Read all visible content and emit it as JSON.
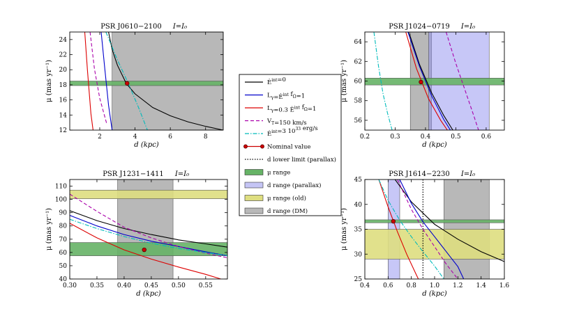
{
  "legend": {
    "entries": [
      {
        "kind": "line",
        "color": "#000000",
        "dash": "",
        "label": "Ė_int=0",
        "label_main": "Ė",
        "label_sup": "int",
        "label_rest": "=0"
      },
      {
        "kind": "line",
        "color": "#0000cc",
        "dash": "",
        "label": "L_γ=Ė_int f_Ω=1",
        "label_main": "L",
        "label_sub": "γ",
        "label_mid": "=Ė",
        "label_sup": "int",
        "label_rest": "  f",
        "label_sub2": "Ω",
        "label_end": "=1"
      },
      {
        "kind": "line",
        "color": "#dd0000",
        "dash": "",
        "label": "L_γ=0.3 Ė_int f_Ω=1",
        "label_main": "L",
        "label_sub": "γ",
        "label_mid": "=0.3 Ė",
        "label_sup": "int",
        "label_rest": "  f",
        "label_sub2": "Ω",
        "label_end": "=1"
      },
      {
        "kind": "line",
        "color": "#aa00aa",
        "dash": "5,3",
        "label": "V_T=150 km/s",
        "label_main": "V",
        "label_sub": "T",
        "label_rest": "=150 km/s"
      },
      {
        "kind": "line",
        "color": "#00bbbb",
        "dash": "6,2,1.5,2",
        "label": "Ė_int=3 10^33 erg/s",
        "label_main": "Ė",
        "label_sup": "int",
        "label_rest": "=3 10",
        "label_sup2": "33",
        "label_end": " erg/s"
      },
      {
        "kind": "marker",
        "color": "#cc0000",
        "label": "Nominal value",
        "label_main": "Nominal value"
      },
      {
        "kind": "line",
        "color": "#000000",
        "dash": "1.5,2",
        "label": "d lower limit (parallax)",
        "label_main": "d lower limit (parallax)"
      },
      {
        "kind": "patch",
        "color": "#66b366",
        "label": "μ range",
        "label_main": "μ range"
      },
      {
        "kind": "patch",
        "color": "#c5c5f5",
        "label": "d range (parallax)",
        "label_main": "d range (parallax)"
      },
      {
        "kind": "patch",
        "color": "#dede80",
        "label": "μ range (old)",
        "label_main": "μ range (old)"
      },
      {
        "kind": "patch",
        "color": "#b8b8b8",
        "label": "d range (DM)",
        "label_main": "d range (DM)"
      }
    ]
  },
  "chart_data": [
    {
      "type": "line",
      "title": "PSR J0610−2100",
      "title_right": "I=I₀",
      "xlabel": "d (kpc)",
      "ylabel": "μ (mas yr⁻¹)",
      "xlim": [
        0.3,
        9.0
      ],
      "ylim": [
        12,
        25
      ],
      "xticks": [
        2,
        4,
        6,
        8
      ],
      "yticks": [
        12,
        14,
        16,
        18,
        20,
        22,
        24
      ],
      "tick_decimals": 0,
      "vbands": [
        {
          "from": 2.7,
          "to": 9.0,
          "color": "#b8b8b8",
          "alpha": 1.0
        }
      ],
      "hbands": [
        {
          "from": 17.9,
          "to": 18.5,
          "color": "#66b366",
          "alpha": 0.9
        }
      ],
      "vlines": [],
      "series": [
        {
          "color": "#000000",
          "dash": "",
          "x": [
            2.5,
            2.7,
            3.0,
            3.5,
            4.0,
            5.0,
            6.0,
            7.0,
            8.0,
            9.0
          ],
          "y": [
            25.0,
            22.7,
            20.6,
            18.2,
            16.8,
            15.0,
            13.9,
            13.1,
            12.5,
            12.0
          ]
        },
        {
          "color": "#0000cc",
          "dash": "",
          "x": [
            2.08,
            2.3,
            2.5,
            2.7
          ],
          "y": [
            25.0,
            19.8,
            15.3,
            12.0
          ]
        },
        {
          "color": "#dd0000",
          "dash": "",
          "x": [
            1.15,
            1.3,
            1.5,
            1.62
          ],
          "y": [
            25.0,
            20.0,
            14.2,
            12.0
          ]
        },
        {
          "color": "#aa00aa",
          "dash": "5,3",
          "x": [
            1.45,
            1.7,
            2.0,
            2.4
          ],
          "y": [
            25.0,
            20.1,
            16.2,
            12.8
          ]
        },
        {
          "color": "#00bbbb",
          "dash": "6,2,1.5,2",
          "x": [
            2.35,
            3.0,
            3.6,
            4.2,
            4.7
          ],
          "y": [
            25.0,
            21.3,
            18.3,
            15.0,
            12.0
          ]
        }
      ],
      "nominal": {
        "x": 3.55,
        "y": 18.2
      }
    },
    {
      "type": "line",
      "title": "PSR J1024−0719",
      "title_right": "I=I₀",
      "xlabel": "d (kpc)",
      "ylabel": "μ (mas yr⁻¹)",
      "xlim": [
        0.2,
        0.66
      ],
      "ylim": [
        55,
        65
      ],
      "xticks": [
        0.2,
        0.3,
        0.4,
        0.5,
        0.6
      ],
      "yticks": [
        56,
        58,
        60,
        62,
        64
      ],
      "tick_decimals": 1,
      "vbands": [
        {
          "from": 0.35,
          "to": 0.42,
          "color": "#b8b8b8",
          "alpha": 1.0
        },
        {
          "from": 0.41,
          "to": 0.61,
          "color": "#8f8ff0",
          "alpha": 0.5
        }
      ],
      "hbands": [
        {
          "from": 59.6,
          "to": 60.3,
          "color": "#66b366",
          "alpha": 0.9
        }
      ],
      "vlines": [],
      "series": [
        {
          "color": "#000000",
          "dash": "",
          "x": [
            0.345,
            0.38,
            0.42,
            0.46,
            0.49
          ],
          "y": [
            65.0,
            61.7,
            58.8,
            56.5,
            55.0
          ]
        },
        {
          "color": "#0000cc",
          "dash": "",
          "x": [
            0.342,
            0.38,
            0.42,
            0.46,
            0.482
          ],
          "y": [
            65.0,
            61.5,
            58.5,
            56.1,
            55.0
          ]
        },
        {
          "color": "#dd0000",
          "dash": "",
          "x": [
            0.335,
            0.37,
            0.41,
            0.45,
            0.472
          ],
          "y": [
            65.0,
            61.3,
            58.2,
            56.0,
            55.0
          ]
        },
        {
          "color": "#aa00aa",
          "dash": "5,3",
          "x": [
            0.468,
            0.5,
            0.53,
            0.56,
            0.575
          ],
          "y": [
            65.0,
            61.8,
            59.1,
            56.4,
            55.0
          ]
        },
        {
          "color": "#00bbbb",
          "dash": "6,2,1.5,2",
          "x": [
            0.23,
            0.245,
            0.26,
            0.275,
            0.29
          ],
          "y": [
            65.0,
            61.5,
            58.7,
            56.7,
            55.0
          ]
        }
      ],
      "nominal": {
        "x": 0.385,
        "y": 59.9
      }
    },
    {
      "type": "line",
      "title": "PSR J1231−1411",
      "title_right": "I=I₀",
      "xlabel": "d (kpc)",
      "ylabel": "μ (mas yr⁻¹)",
      "xlim": [
        0.3,
        0.59
      ],
      "ylim": [
        40,
        115
      ],
      "xticks": [
        0.3,
        0.35,
        0.4,
        0.45,
        0.5,
        0.55
      ],
      "yticks": [
        40,
        50,
        60,
        70,
        80,
        90,
        100,
        110
      ],
      "tick_decimals": 2,
      "vbands": [
        {
          "from": 0.388,
          "to": 0.49,
          "color": "#b8b8b8",
          "alpha": 1.0
        }
      ],
      "hbands": [
        {
          "from": 100.5,
          "to": 107,
          "color": "#dede80",
          "alpha": 0.9
        },
        {
          "from": 57.5,
          "to": 67.5,
          "color": "#66b366",
          "alpha": 0.9
        }
      ],
      "vlines": [],
      "series": [
        {
          "color": "#000000",
          "dash": "",
          "x": [
            0.3,
            0.35,
            0.4,
            0.45,
            0.5,
            0.55,
            0.59
          ],
          "y": [
            91.5,
            84.0,
            78.0,
            73.5,
            69.5,
            66.5,
            64.0
          ]
        },
        {
          "color": "#0000cc",
          "dash": "",
          "x": [
            0.3,
            0.35,
            0.4,
            0.45,
            0.5,
            0.55,
            0.59
          ],
          "y": [
            88.0,
            80.0,
            73.5,
            68.5,
            64.5,
            60.5,
            57.5
          ]
        },
        {
          "color": "#dd0000",
          "dash": "",
          "x": [
            0.3,
            0.35,
            0.4,
            0.45,
            0.5,
            0.55,
            0.578
          ],
          "y": [
            82.0,
            71.0,
            62.0,
            55.0,
            49.0,
            43.5,
            40.0
          ]
        },
        {
          "color": "#aa00aa",
          "dash": "5,3",
          "x": [
            0.3,
            0.35,
            0.4,
            0.45,
            0.5,
            0.55,
            0.59
          ],
          "y": [
            104.0,
            91.0,
            79.0,
            71.0,
            64.5,
            59.5,
            56.0
          ]
        },
        {
          "color": "#00bbbb",
          "dash": "6,2,1.5,2",
          "x": [
            0.3,
            0.35,
            0.4,
            0.45,
            0.5,
            0.55,
            0.59
          ],
          "y": [
            85.0,
            78.0,
            72.0,
            67.0,
            63.0,
            60.0,
            57.5
          ]
        }
      ],
      "nominal": {
        "x": 0.437,
        "y": 62.0
      }
    },
    {
      "type": "line",
      "title": "PSR J1614−2230",
      "title_right": "I=I₀",
      "xlabel": "d (kpc)",
      "ylabel": "μ (mas yr⁻¹)",
      "xlim": [
        0.4,
        1.6
      ],
      "ylim": [
        25,
        45
      ],
      "xticks": [
        0.4,
        0.6,
        0.8,
        1.0,
        1.2,
        1.4,
        1.6
      ],
      "yticks": [
        25,
        30,
        35,
        40,
        45
      ],
      "tick_decimals": 1,
      "vbands": [
        {
          "from": 1.08,
          "to": 1.47,
          "color": "#b8b8b8",
          "alpha": 1.0
        },
        {
          "from": 0.6,
          "to": 0.7,
          "color": "#8f8ff0",
          "alpha": 0.5
        }
      ],
      "hbands": [
        {
          "from": 29.0,
          "to": 35.0,
          "color": "#dede80",
          "alpha": 0.9
        },
        {
          "from": 36.3,
          "to": 36.9,
          "color": "#66b366",
          "alpha": 0.9
        }
      ],
      "vlines": [
        {
          "x": 0.9,
          "color": "#000000",
          "dash": "1.5,2"
        }
      ],
      "series": [
        {
          "color": "#000000",
          "dash": "",
          "x": [
            0.66,
            0.8,
            1.0,
            1.2,
            1.4,
            1.6
          ],
          "y": [
            45.0,
            40.5,
            36.0,
            33.0,
            30.5,
            28.5
          ]
        },
        {
          "color": "#0000cc",
          "dash": "",
          "x": [
            0.7,
            0.8,
            0.9,
            1.0,
            1.1,
            1.2,
            1.25
          ],
          "y": [
            45.0,
            40.2,
            36.5,
            33.5,
            30.5,
            27.5,
            25.0
          ]
        },
        {
          "color": "#dd0000",
          "dash": "",
          "x": [
            0.52,
            0.6,
            0.68,
            0.76,
            0.84,
            0.86
          ],
          "y": [
            45.0,
            39.5,
            34.5,
            30.0,
            26.0,
            25.0
          ]
        },
        {
          "color": "#aa00aa",
          "dash": "5,3",
          "x": [
            0.68,
            0.8,
            0.9,
            1.0,
            1.1,
            1.2
          ],
          "y": [
            45.0,
            39.0,
            35.0,
            31.5,
            28.0,
            25.0
          ]
        },
        {
          "color": "#00bbbb",
          "dash": "6,2,1.5,2",
          "x": [
            0.52,
            0.6,
            0.7,
            0.8,
            0.9,
            1.0,
            1.08
          ],
          "y": [
            45.0,
            40.8,
            36.8,
            33.5,
            30.5,
            27.6,
            25.0
          ]
        }
      ],
      "nominal": {
        "x": 0.645,
        "y": 36.6
      }
    }
  ]
}
